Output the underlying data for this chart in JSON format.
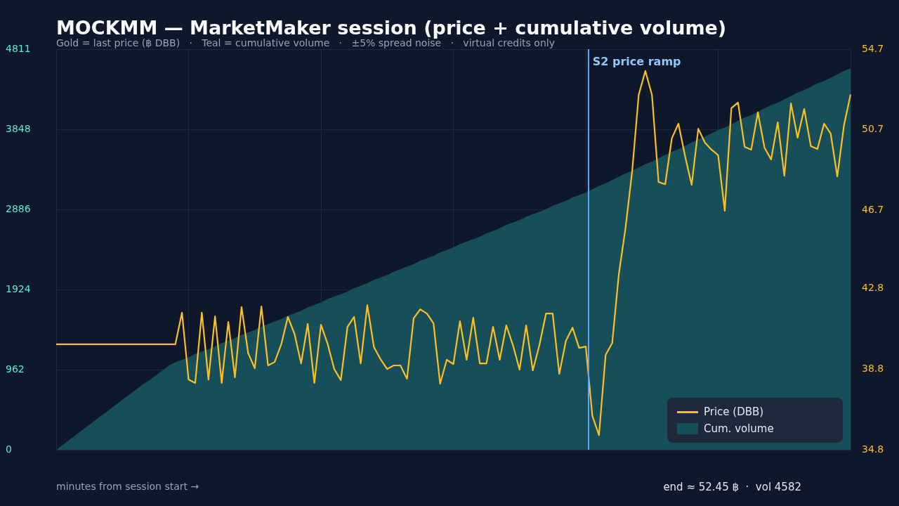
{
  "chart_data": {
    "type": "line",
    "title": "MOCKMM — MarketMaker session (price + cumulative volume)",
    "subtitle": "Gold = last price (฿ DBB)   ·   Teal = cumulative volume   ·   ±5% spread noise   ·   virtual credits only",
    "xlabel": "minutes from session start →",
    "annotations": [
      "end ≈ 52.45 ฿  ·  vol 4582",
      {
        "text": "S2 price ramp"
      }
    ],
    "categories": [
      null,
      null,
      null,
      null,
      null,
      null,
      null,
      null,
      null,
      null,
      null,
      null,
      null,
      null,
      null,
      null,
      null,
      null,
      null,
      null,
      null,
      null,
      null,
      null,
      null,
      null,
      null,
      null,
      null,
      null,
      null,
      null,
      null,
      null,
      null,
      null,
      null,
      null,
      null,
      null,
      null,
      null,
      null,
      null,
      null,
      null,
      null,
      null,
      null,
      null,
      null,
      null,
      null,
      null,
      null,
      null,
      null,
      null,
      null,
      null,
      null,
      null,
      null,
      null,
      null,
      null,
      null,
      null,
      null,
      null,
      null,
      null,
      null,
      null,
      null,
      null,
      null,
      null,
      null,
      null,
      null,
      null,
      null,
      null,
      null,
      null,
      null,
      null,
      null,
      null,
      null,
      null,
      null,
      null,
      null,
      null,
      null,
      null,
      null,
      null,
      null,
      null,
      null,
      null,
      null,
      null,
      null,
      null,
      null,
      null,
      null,
      null,
      null,
      null,
      null,
      null,
      null,
      null,
      null,
      null,
      null
    ],
    "ylim": [
      0,
      4811
    ],
    "yticks": [
      0,
      962,
      1924,
      2886,
      3848,
      4811
    ],
    "y2lim": [
      34.8,
      54.7
    ],
    "y2ticks": [
      34.8,
      38.8,
      42.8,
      46.7,
      50.7,
      54.7
    ],
    "tick_labels": "y",
    "grid": true,
    "legend": "bottom right",
    "line_style": "solid",
    "series": [
      {
        "name": "Cum. volume",
        "type": "area",
        "color": "#164e5a",
        "values": [
          0,
          60,
          120,
          180,
          240,
          300,
          360,
          420,
          480,
          540,
          600,
          660,
          720,
          780,
          830,
          890,
          950,
          1010,
          1050,
          1080,
          1110,
          1150,
          1180,
          1210,
          1240,
          1280,
          1310,
          1340,
          1380,
          1410,
          1440,
          1480,
          1510,
          1540,
          1570,
          1610,
          1640,
          1670,
          1710,
          1740,
          1770,
          1810,
          1840,
          1870,
          1900,
          1940,
          1970,
          2000,
          2040,
          2070,
          2100,
          2140,
          2170,
          2200,
          2230,
          2270,
          2300,
          2330,
          2370,
          2400,
          2430,
          2470,
          2500,
          2530,
          2560,
          2600,
          2630,
          2660,
          2700,
          2730,
          2760,
          2800,
          2830,
          2860,
          2890,
          2930,
          2960,
          2990,
          3030,
          3060,
          3090,
          3130,
          3170,
          3200,
          3240,
          3280,
          3320,
          3350,
          3390,
          3430,
          3460,
          3500,
          3540,
          3580,
          3610,
          3650,
          3690,
          3730,
          3760,
          3800,
          3840,
          3870,
          3910,
          3950,
          3990,
          4020,
          4060,
          4100,
          4140,
          4170,
          4210,
          4250,
          4290,
          4320,
          4360,
          4400,
          4430,
          4470,
          4510,
          4550,
          4582
        ]
      },
      {
        "name": "Price (DBB)",
        "type": "line",
        "axis": "y2",
        "color": "#fbbf24",
        "values": [
          40.04,
          40.04,
          40.04,
          40.04,
          40.04,
          40.04,
          40.04,
          40.04,
          40.04,
          40.04,
          40.04,
          40.04,
          40.04,
          40.04,
          40.04,
          40.04,
          40.04,
          40.04,
          40.04,
          41.61,
          38.29,
          38.12,
          41.61,
          38.29,
          41.43,
          38.12,
          41.15,
          38.4,
          41.89,
          39.6,
          38.85,
          41.92,
          38.99,
          39.16,
          40.04,
          41.4,
          40.56,
          39.09,
          41.05,
          38.12,
          41.01,
          40.07,
          38.81,
          38.26,
          40.9,
          41.4,
          39.09,
          41.99,
          39.9,
          39.3,
          38.81,
          38.99,
          38.99,
          38.33,
          41.33,
          41.78,
          41.57,
          41.08,
          38.08,
          39.27,
          39.06,
          41.19,
          39.27,
          41.36,
          39.09,
          39.09,
          40.91,
          39.27,
          40.98,
          40.0,
          38.78,
          40.98,
          38.74,
          40.0,
          41.57,
          41.57,
          38.57,
          40.21,
          40.87,
          39.86,
          39.93,
          36.48,
          35.53,
          39.51,
          40.11,
          43.53,
          45.8,
          48.6,
          52.43,
          53.62,
          52.43,
          48.1,
          47.99,
          50.27,
          51.0,
          49.39,
          47.96,
          50.75,
          50.06,
          49.71,
          49.43,
          46.67,
          51.77,
          52.05,
          49.85,
          49.71,
          51.56,
          49.81,
          49.22,
          51.07,
          48.41,
          52.01,
          50.3,
          51.73,
          49.88,
          49.74,
          51.0,
          50.51,
          48.38,
          50.9,
          52.45
        ]
      }
    ]
  }
}
